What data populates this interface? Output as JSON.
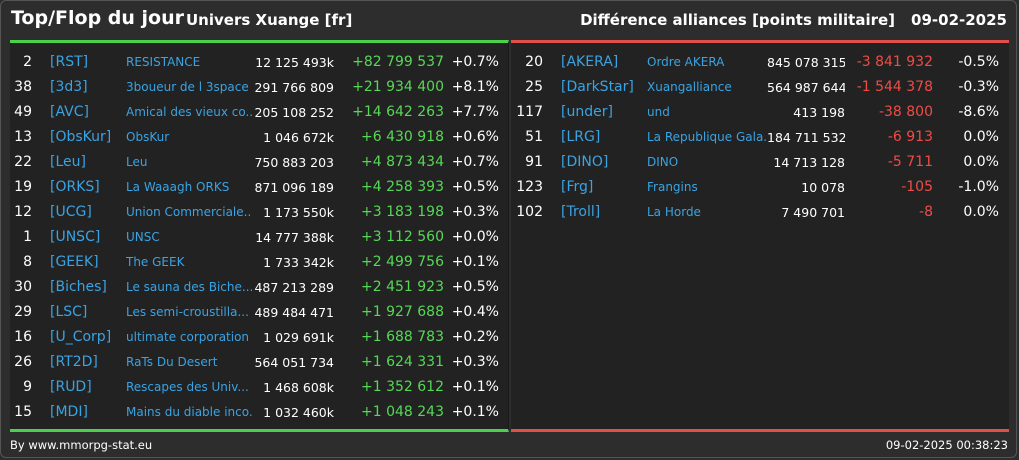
{
  "header": {
    "title": "Top/Flop du jour",
    "universe": "Univers Xuange [fr]",
    "right_label": "Différence alliances [points militaire]",
    "date": "09-02-2025"
  },
  "colors": {
    "positive": "#56d856",
    "negative": "#ef4c46",
    "link": "#3aa3e3",
    "top_bar": "#4cd14c",
    "flop_bar": "#e0504a"
  },
  "top": [
    {
      "rank": "2",
      "tag": "[RST]",
      "name": "RESISTANCE",
      "points": "12 125 493k",
      "diff": "+82 799 537",
      "pct": "+0.7%"
    },
    {
      "rank": "38",
      "tag": "[3d3]",
      "name": "3boueur de l 3space",
      "points": "291 766 809",
      "diff": "+21 934 400",
      "pct": "+8.1%"
    },
    {
      "rank": "49",
      "tag": "[AVC]",
      "name": "Amical des vieux co...",
      "points": "205 108 252",
      "diff": "+14 642 263",
      "pct": "+7.7%"
    },
    {
      "rank": "13",
      "tag": "[ObsKur]",
      "name": "ObsKur",
      "points": "1 046 672k",
      "diff": "+6 430 918",
      "pct": "+0.6%"
    },
    {
      "rank": "22",
      "tag": "[Leu]",
      "name": "Leu",
      "points": "750 883 203",
      "diff": "+4 873 434",
      "pct": "+0.7%"
    },
    {
      "rank": "19",
      "tag": "[ORKS]",
      "name": "La Waaagh ORKS",
      "points": "871 096 189",
      "diff": "+4 258 393",
      "pct": "+0.5%"
    },
    {
      "rank": "12",
      "tag": "[UCG]",
      "name": "Union Commerciale...",
      "points": "1 173 550k",
      "diff": "+3 183 198",
      "pct": "+0.3%"
    },
    {
      "rank": "1",
      "tag": "[UNSC]",
      "name": "UNSC",
      "points": "14 777 388k",
      "diff": "+3 112 560",
      "pct": "+0.0%"
    },
    {
      "rank": "8",
      "tag": "[GEEK]",
      "name": "The GEEK",
      "points": "1 733 342k",
      "diff": "+2 499 756",
      "pct": "+0.1%"
    },
    {
      "rank": "30",
      "tag": "[Biches]",
      "name": "Le sauna des Biche...",
      "points": "487 213 289",
      "diff": "+2 451 923",
      "pct": "+0.5%"
    },
    {
      "rank": "29",
      "tag": "[LSC]",
      "name": "Les semi-croustilla...",
      "points": "489 484 471",
      "diff": "+1 927 688",
      "pct": "+0.4%"
    },
    {
      "rank": "16",
      "tag": "[U_Corp]",
      "name": "ultimate corporation",
      "points": "1 029 691k",
      "diff": "+1 688 783",
      "pct": "+0.2%"
    },
    {
      "rank": "26",
      "tag": "[RT2D]",
      "name": "RaTs Du Desert",
      "points": "564 051 734",
      "diff": "+1 624 331",
      "pct": "+0.3%"
    },
    {
      "rank": "9",
      "tag": "[RUD]",
      "name": "Rescapes des Univ...",
      "points": "1 468 608k",
      "diff": "+1 352 612",
      "pct": "+0.1%"
    },
    {
      "rank": "15",
      "tag": "[MDI]",
      "name": "Mains du diable inco...",
      "points": "1 032 460k",
      "diff": "+1 048 243",
      "pct": "+0.1%"
    }
  ],
  "flop": [
    {
      "rank": "20",
      "tag": "[AKERA]",
      "name": "Ordre AKERA",
      "points": "845 078 315",
      "diff": "-3 841 932",
      "pct": "-0.5%"
    },
    {
      "rank": "25",
      "tag": "[DarkStar]",
      "name": "Xuangalliance",
      "points": "564 987 644",
      "diff": "-1 544 378",
      "pct": "-0.3%"
    },
    {
      "rank": "117",
      "tag": "[under]",
      "name": "und",
      "points": "413 198",
      "diff": "-38 800",
      "pct": "-8.6%"
    },
    {
      "rank": "51",
      "tag": "[LRG]",
      "name": "La Republique Gala...",
      "points": "184 711 532",
      "diff": "-6 913",
      "pct": "0.0%"
    },
    {
      "rank": "91",
      "tag": "[DINO]",
      "name": "DINO",
      "points": "14 713 128",
      "diff": "-5 711",
      "pct": "0.0%"
    },
    {
      "rank": "123",
      "tag": "[Frg]",
      "name": "Frangins",
      "points": "10 078",
      "diff": "-105",
      "pct": "-1.0%"
    },
    {
      "rank": "102",
      "tag": "[Troll]",
      "name": "La Horde",
      "points": "7 490 701",
      "diff": "-8",
      "pct": "0.0%"
    }
  ],
  "footer": {
    "source": "By www.mmorpg-stat.eu",
    "timestamp": "09-02-2025 00:38:23"
  }
}
